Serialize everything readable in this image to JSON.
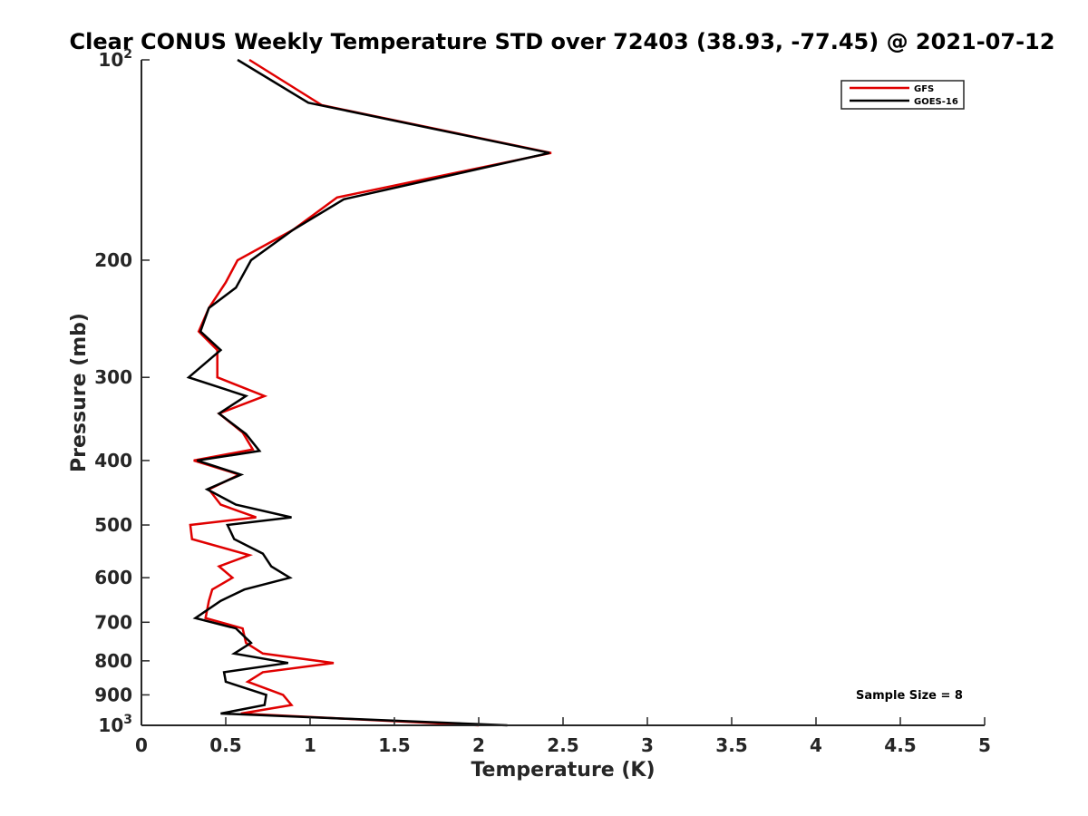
{
  "chart_data": {
    "type": "line",
    "title": "Clear CONUS Weekly Temperature STD over 72403 (38.93, -77.45) @ 2021-07-12",
    "xlabel": "Temperature (K)",
    "ylabel": "Pressure (mb)",
    "xlim": [
      0,
      5
    ],
    "ylim": [
      100,
      1000
    ],
    "y_scale": "log",
    "y_reversed": true,
    "grid": false,
    "legend_position": "top-right",
    "x_ticks": [
      "0",
      "0.5",
      "1",
      "1.5",
      "2",
      "2.5",
      "3",
      "3.5",
      "4",
      "4.5",
      "5"
    ],
    "y_ticks": [
      {
        "value": 100,
        "base": "10",
        "exp": "2"
      },
      {
        "value": 200,
        "label": "200"
      },
      {
        "value": 300,
        "label": "300"
      },
      {
        "value": 400,
        "label": "400"
      },
      {
        "value": 500,
        "label": "500"
      },
      {
        "value": 600,
        "label": "600"
      },
      {
        "value": 700,
        "label": "700"
      },
      {
        "value": 800,
        "label": "800"
      },
      {
        "value": 900,
        "label": "900"
      },
      {
        "value": 1000,
        "base": "10",
        "exp": "3"
      }
    ],
    "annotation": "Sample Size = 8",
    "series": [
      {
        "name": "GFS",
        "color": "#e00000",
        "points": [
          [
            0.64,
            100
          ],
          [
            1.07,
            117
          ],
          [
            2.43,
            138
          ],
          [
            1.16,
            161
          ],
          [
            0.9,
            180
          ],
          [
            0.57,
            200
          ],
          [
            0.5,
            216
          ],
          [
            0.4,
            236
          ],
          [
            0.34,
            256
          ],
          [
            0.45,
            273
          ],
          [
            0.45,
            300
          ],
          [
            0.73,
            320
          ],
          [
            0.46,
            340
          ],
          [
            0.6,
            363
          ],
          [
            0.66,
            385
          ],
          [
            0.31,
            400
          ],
          [
            0.58,
            420
          ],
          [
            0.4,
            442
          ],
          [
            0.47,
            466
          ],
          [
            0.68,
            487
          ],
          [
            0.29,
            500
          ],
          [
            0.3,
            525
          ],
          [
            0.64,
            555
          ],
          [
            0.46,
            577
          ],
          [
            0.54,
            600
          ],
          [
            0.42,
            625
          ],
          [
            0.4,
            650
          ],
          [
            0.38,
            690
          ],
          [
            0.6,
            715
          ],
          [
            0.62,
            752
          ],
          [
            0.72,
            780
          ],
          [
            1.14,
            806
          ],
          [
            0.72,
            832
          ],
          [
            0.63,
            860
          ],
          [
            0.84,
            900
          ],
          [
            0.89,
            932
          ],
          [
            0.59,
            960
          ],
          [
            2.0,
            1000
          ]
        ]
      },
      {
        "name": "GOES-16",
        "color": "#000000",
        "points": [
          [
            0.57,
            100
          ],
          [
            0.99,
            116
          ],
          [
            2.42,
            138
          ],
          [
            1.2,
            162
          ],
          [
            0.9,
            180
          ],
          [
            0.65,
            200
          ],
          [
            0.56,
            220
          ],
          [
            0.4,
            236
          ],
          [
            0.35,
            256
          ],
          [
            0.47,
            273
          ],
          [
            0.28,
            300
          ],
          [
            0.62,
            320
          ],
          [
            0.46,
            340
          ],
          [
            0.62,
            365
          ],
          [
            0.7,
            387
          ],
          [
            0.33,
            400
          ],
          [
            0.59,
            420
          ],
          [
            0.39,
            442
          ],
          [
            0.56,
            466
          ],
          [
            0.89,
            487
          ],
          [
            0.51,
            500
          ],
          [
            0.55,
            525
          ],
          [
            0.72,
            552
          ],
          [
            0.77,
            577
          ],
          [
            0.88,
            600
          ],
          [
            0.61,
            625
          ],
          [
            0.47,
            650
          ],
          [
            0.32,
            690
          ],
          [
            0.56,
            715
          ],
          [
            0.65,
            752
          ],
          [
            0.55,
            780
          ],
          [
            0.87,
            806
          ],
          [
            0.49,
            832
          ],
          [
            0.5,
            860
          ],
          [
            0.74,
            900
          ],
          [
            0.73,
            932
          ],
          [
            0.47,
            960
          ],
          [
            2.17,
            1000
          ]
        ]
      }
    ]
  }
}
